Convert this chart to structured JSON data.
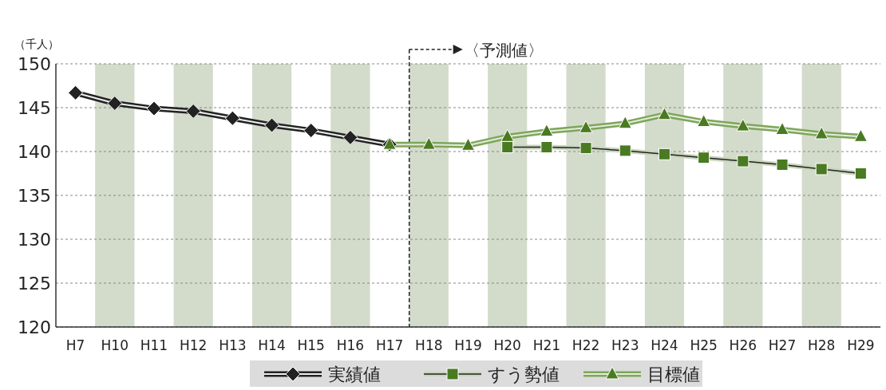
{
  "chart_data": {
    "type": "line",
    "ylabel": "（千人）",
    "categories": [
      "H7",
      "H10",
      "H11",
      "H12",
      "H13",
      "H14",
      "H15",
      "H16",
      "H17",
      "H18",
      "H19",
      "H20",
      "H21",
      "H22",
      "H23",
      "H24",
      "H25",
      "H26",
      "H27",
      "H28",
      "H29"
    ],
    "series": [
      {
        "name": "実績値",
        "color": "#222222",
        "marker": "diamond",
        "values": [
          146.7,
          145.5,
          144.9,
          144.6,
          143.8,
          143.0,
          142.4,
          141.6,
          140.8,
          null,
          null,
          null,
          null,
          null,
          null,
          null,
          null,
          null,
          null,
          null,
          null
        ]
      },
      {
        "name": "すう勢値",
        "color": "#4a7a22",
        "marker": "square",
        "values": [
          null,
          null,
          null,
          null,
          null,
          null,
          null,
          null,
          null,
          null,
          null,
          140.5,
          140.5,
          140.4,
          140.1,
          139.7,
          139.3,
          138.9,
          138.5,
          138.0,
          137.5
        ]
      },
      {
        "name": "目標値",
        "color": "#4a7a22",
        "marker": "triangle",
        "values": [
          null,
          null,
          null,
          null,
          null,
          null,
          null,
          null,
          140.8,
          140.8,
          140.7,
          141.7,
          142.3,
          142.7,
          143.2,
          144.2,
          143.4,
          142.9,
          142.5,
          142.0,
          141.7
        ]
      }
    ],
    "ylim": [
      120,
      150
    ],
    "yticks": [
      120,
      125,
      130,
      135,
      140,
      145,
      150
    ],
    "grid": "y",
    "legend": "bottom",
    "bands": [
      {
        "axis": "x",
        "from": "H10",
        "to": "H10",
        "color": "#d3dbcb"
      },
      {
        "axis": "x",
        "from": "H12",
        "to": "H12",
        "color": "#d3dbcb"
      },
      {
        "axis": "x",
        "from": "H14",
        "to": "H14",
        "color": "#d3dbcb"
      },
      {
        "axis": "x",
        "from": "H16",
        "to": "H16",
        "color": "#d3dbcb"
      },
      {
        "axis": "x",
        "from": "H18",
        "to": "H18",
        "color": "#d3dbcb"
      },
      {
        "axis": "x",
        "from": "H20",
        "to": "H20",
        "color": "#d3dbcb"
      },
      {
        "axis": "x",
        "from": "H22",
        "to": "H22",
        "color": "#d3dbcb"
      },
      {
        "axis": "x",
        "from": "H24",
        "to": "H24",
        "color": "#d3dbcb"
      },
      {
        "axis": "x",
        "from": "H26",
        "to": "H26",
        "color": "#d3dbcb"
      },
      {
        "axis": "x",
        "from": "H28",
        "to": "H28",
        "color": "#d3dbcb"
      }
    ],
    "ref_lines": [
      {
        "axis": "x",
        "value": "H18",
        "label": "〈予測値〉",
        "line_style": "dashed",
        "color": "#222222"
      }
    ]
  }
}
